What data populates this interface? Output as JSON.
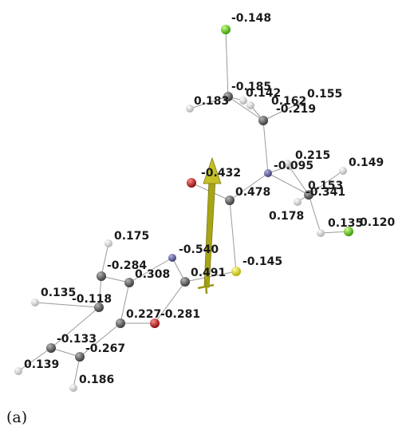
{
  "panel_label": "(a)",
  "colors": {
    "carbon": "#5a5a5a",
    "hydrogen": "#dedede",
    "nitrogen": "#6c6ca8",
    "oxygen": "#c01818",
    "sulfur": "#e6e61a",
    "chlorine": "#5ec818",
    "dipole_arrow": "#b8b41e",
    "bond": "#9a9a9a"
  },
  "atoms": [
    {
      "element": "Cl",
      "charge": "-0.148"
    },
    {
      "element": "C",
      "charge": "-0.185"
    },
    {
      "element": "H",
      "charge": "0.183"
    },
    {
      "element": "H",
      "charge": "0.142"
    },
    {
      "element": "C",
      "charge": "-0.219"
    },
    {
      "element": "H",
      "charge": "0.162"
    },
    {
      "element": "H",
      "charge": "0.155"
    },
    {
      "element": "N",
      "charge": "-0.095"
    },
    {
      "element": "H",
      "charge": "0.215"
    },
    {
      "element": "H",
      "charge": "0.149"
    },
    {
      "element": "C",
      "charge": "-0.341"
    },
    {
      "element": "H",
      "charge": "0.153"
    },
    {
      "element": "H",
      "charge": "0.178"
    },
    {
      "element": "H",
      "charge": "0.135"
    },
    {
      "element": "Cl",
      "charge": "0.120"
    },
    {
      "element": "O",
      "charge": "-0.432"
    },
    {
      "element": "C",
      "charge": "0.478"
    },
    {
      "element": "S",
      "charge": "-0.145"
    },
    {
      "element": "N",
      "charge": "-0.540"
    },
    {
      "element": "C",
      "charge": "0.491"
    },
    {
      "element": "H",
      "charge": "0.175"
    },
    {
      "element": "C",
      "charge": "-0.284"
    },
    {
      "element": "C",
      "charge": "0.308"
    },
    {
      "element": "C",
      "charge": "-0.118"
    },
    {
      "element": "H",
      "charge": "0.135"
    },
    {
      "element": "C",
      "charge": "0.227"
    },
    {
      "element": "O",
      "charge": "-0.281"
    },
    {
      "element": "C",
      "charge": "-0.133"
    },
    {
      "element": "C",
      "charge": "-0.267"
    },
    {
      "element": "H",
      "charge": "0.139"
    },
    {
      "element": "H",
      "charge": "0.186"
    }
  ]
}
